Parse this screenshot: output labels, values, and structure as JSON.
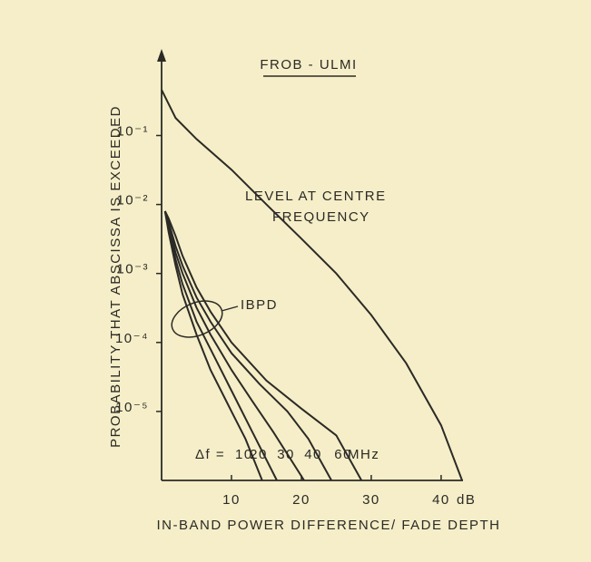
{
  "chart_data": {
    "type": "line",
    "title": "FROB - ULMI",
    "x_label": "IN-BAND POWER DIFFERENCE/ FADE DEPTH",
    "y_label": "PROBABILITY THAT ABSCISSA IS EXCEEDED",
    "log_y": true,
    "color": "#2b2a26",
    "xlim": [
      0,
      43
    ],
    "ylim": [
      1e-06,
      1.5
    ],
    "xticks": [
      10,
      20,
      30,
      40
    ],
    "yticks": [
      {
        "value": 0.1,
        "label": "10⁻¹"
      },
      {
        "value": 0.01,
        "label": "10⁻²"
      },
      {
        "value": 0.001,
        "label": "10⁻³"
      },
      {
        "value": 0.0001,
        "label": "10⁻⁴"
      },
      {
        "value": 1e-05,
        "label": "10⁻⁵"
      }
    ],
    "annotations": [
      "dB",
      "LEVEL AT CENTRE",
      "FREQUENCY",
      "IBPD",
      "Δf =",
      "MHz"
    ],
    "series": [
      {
        "x": [
          0,
          2,
          5,
          10,
          15,
          20,
          25,
          30,
          35,
          40,
          43
        ],
        "values": [
          0.46,
          0.18,
          0.089,
          0.032,
          0.01,
          0.0032,
          0.001,
          0.00025,
          5e-05,
          6.3e-06,
          1e-06
        ]
      },
      {
        "name": "10",
        "x": [
          0.5,
          1,
          2,
          3,
          5,
          7,
          10,
          12,
          14.4
        ],
        "values": [
          0.008,
          0.004,
          0.0013,
          0.0005,
          0.00013,
          4e-05,
          1e-05,
          4e-06,
          1e-06
        ]
      },
      {
        "name": "20",
        "x": [
          0.5,
          1,
          2,
          3,
          5,
          7,
          10,
          13,
          16.5
        ],
        "values": [
          0.008,
          0.0045,
          0.0016,
          0.0007,
          0.0002,
          8e-05,
          2e-05,
          5e-06,
          1e-06
        ]
      },
      {
        "name": "30",
        "x": [
          0.5,
          1,
          2,
          3,
          5,
          7,
          10,
          13,
          16,
          20.4
        ],
        "values": [
          0.008,
          0.005,
          0.002,
          0.001,
          0.00032,
          0.00013,
          4e-05,
          1.4e-05,
          5e-06,
          1e-06
        ]
      },
      {
        "name": "40",
        "x": [
          0.5,
          1,
          2,
          3,
          5,
          7,
          10,
          14,
          18,
          21,
          24.3
        ],
        "values": [
          0.008,
          0.0056,
          0.0025,
          0.0013,
          0.00045,
          0.0002,
          7e-05,
          2.5e-05,
          1e-05,
          4e-06,
          1e-06
        ]
      },
      {
        "name": "60",
        "x": [
          0.5,
          1,
          2,
          3,
          5,
          7,
          10,
          15,
          20,
          25,
          28.6
        ],
        "values": [
          0.008,
          0.0063,
          0.0035,
          0.0018,
          0.00063,
          0.00028,
          0.0001,
          2.8e-05,
          1.1e-05,
          4.5e-06,
          1e-06
        ]
      }
    ]
  }
}
